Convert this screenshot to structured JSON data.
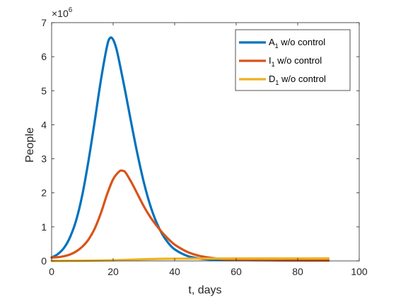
{
  "chart_data": {
    "type": "line",
    "xlabel": "t, days",
    "ylabel": "People",
    "xlim": [
      0,
      100
    ],
    "ylim": [
      0,
      7000000
    ],
    "x_ticks": [
      "0",
      "20",
      "40",
      "60",
      "80",
      "100"
    ],
    "y_ticks": [
      "0",
      "1",
      "2",
      "3",
      "4",
      "5",
      "6",
      "7"
    ],
    "y_exponent": {
      "base": "×10",
      "power": "6"
    },
    "grid": false,
    "legend_position": "top-right",
    "series": [
      {
        "name": "A1 w/o control",
        "legend": {
          "pre": "A",
          "sub": "1",
          "post": " w/o control"
        },
        "color": "#0072BD",
        "x": [
          0,
          2,
          4,
          6,
          8,
          10,
          12,
          14,
          16,
          18,
          19,
          20,
          21,
          22,
          24,
          26,
          28,
          30,
          32,
          34,
          36,
          38,
          40,
          44,
          48,
          52,
          56,
          60,
          70,
          80,
          90
        ],
        "y": [
          100000,
          200000,
          380000,
          700000,
          1200000,
          1950000,
          2950000,
          4100000,
          5300000,
          6300000,
          6550000,
          6500000,
          6250000,
          5850000,
          4950000,
          4000000,
          3100000,
          2300000,
          1650000,
          1150000,
          780000,
          520000,
          340000,
          150000,
          70000,
          40000,
          30000,
          25000,
          20000,
          18000,
          15000
        ]
      },
      {
        "name": "I1 w/o control",
        "legend": {
          "pre": "I",
          "sub": "1",
          "post": " w/o control"
        },
        "color": "#D95319",
        "x": [
          0,
          2,
          4,
          6,
          8,
          10,
          12,
          14,
          16,
          18,
          20,
          22,
          23,
          24,
          26,
          28,
          30,
          32,
          34,
          36,
          38,
          40,
          44,
          48,
          52,
          56,
          60,
          70,
          80,
          90
        ],
        "y": [
          100000,
          110000,
          140000,
          190000,
          280000,
          420000,
          630000,
          950000,
          1400000,
          1950000,
          2400000,
          2630000,
          2650000,
          2600000,
          2300000,
          1950000,
          1600000,
          1300000,
          1050000,
          830000,
          640000,
          480000,
          270000,
          150000,
          90000,
          55000,
          40000,
          20000,
          15000,
          12000
        ]
      },
      {
        "name": "D1 w/o control",
        "legend": {
          "pre": "D",
          "sub": "1",
          "post": " w/o control"
        },
        "color": "#EDB120",
        "x": [
          0,
          10,
          20,
          25,
          30,
          35,
          40,
          50,
          60,
          70,
          80,
          90
        ],
        "y": [
          0,
          5000,
          20000,
          35000,
          50000,
          60000,
          65000,
          70000,
          72000,
          73000,
          74000,
          75000
        ]
      }
    ]
  }
}
